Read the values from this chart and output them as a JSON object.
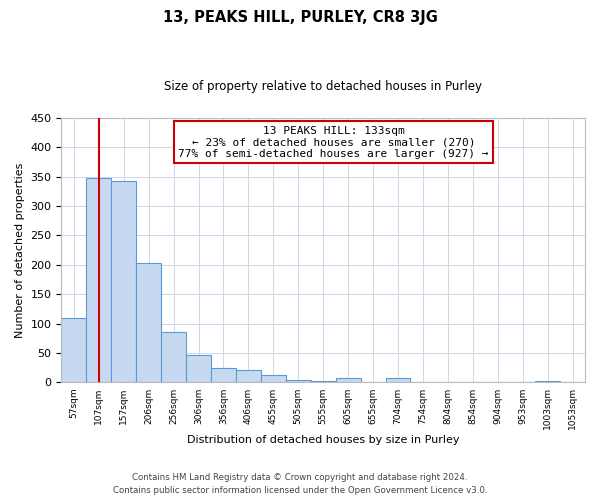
{
  "title": "13, PEAKS HILL, PURLEY, CR8 3JG",
  "subtitle": "Size of property relative to detached houses in Purley",
  "xlabel": "Distribution of detached houses by size in Purley",
  "ylabel": "Number of detached properties",
  "bin_labels": [
    "57sqm",
    "107sqm",
    "157sqm",
    "206sqm",
    "256sqm",
    "306sqm",
    "356sqm",
    "406sqm",
    "455sqm",
    "505sqm",
    "555sqm",
    "605sqm",
    "655sqm",
    "704sqm",
    "754sqm",
    "804sqm",
    "854sqm",
    "904sqm",
    "953sqm",
    "1003sqm",
    "1053sqm"
  ],
  "bar_values": [
    110,
    347,
    342,
    203,
    85,
    47,
    25,
    21,
    12,
    5,
    2,
    7,
    0,
    7,
    1,
    0,
    0,
    0,
    0,
    3,
    0
  ],
  "bar_color": "#c6d9f0",
  "bar_edge_color": "#5a9bd5",
  "vline_x": 1.52,
  "vline_color": "#cc0000",
  "ylim": [
    0,
    450
  ],
  "yticks": [
    0,
    50,
    100,
    150,
    200,
    250,
    300,
    350,
    400,
    450
  ],
  "annotation_title": "13 PEAKS HILL: 133sqm",
  "annotation_line1": "← 23% of detached houses are smaller (270)",
  "annotation_line2": "77% of semi-detached houses are larger (927) →",
  "annotation_box_color": "#ffffff",
  "annotation_box_edge": "#cc0000",
  "footer1": "Contains HM Land Registry data © Crown copyright and database right 2024.",
  "footer2": "Contains public sector information licensed under the Open Government Licence v3.0.",
  "background_color": "#ffffff",
  "grid_color": "#d0d8e8"
}
